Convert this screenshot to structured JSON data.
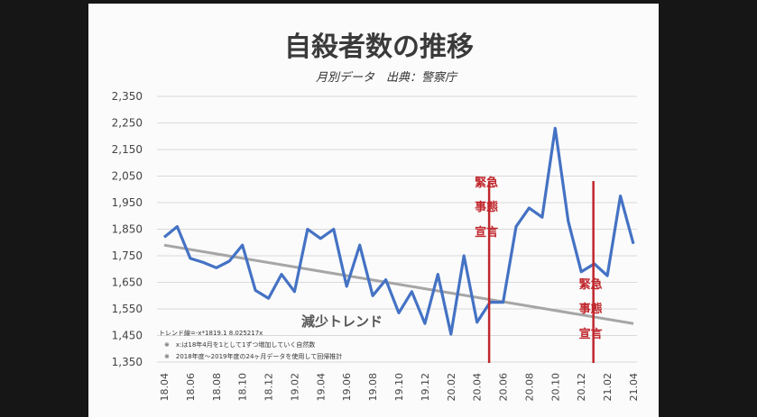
{
  "chart_data": {
    "type": "line",
    "title": "自殺者数の推移",
    "subtitle": "月別データ　出典：警察庁",
    "ylim": [
      1350,
      2350
    ],
    "yticks": [
      "2,350",
      "2,250",
      "2,150",
      "2,050",
      "1,950",
      "1,850",
      "1,750",
      "1,650",
      "1,550",
      "1,450",
      "1,350"
    ],
    "ytick_values": [
      2350,
      2250,
      2150,
      2050,
      1950,
      1850,
      1750,
      1650,
      1550,
      1450,
      1350
    ],
    "x": [
      "18.04",
      "18.05",
      "18.06",
      "18.07",
      "18.08",
      "18.09",
      "18.10",
      "18.11",
      "18.12",
      "19.01",
      "19.02",
      "19.03",
      "19.04",
      "19.05",
      "19.06",
      "19.07",
      "19.08",
      "19.09",
      "19.10",
      "19.11",
      "19.12",
      "20.01",
      "20.02",
      "20.03",
      "20.04",
      "20.05",
      "20.06",
      "20.07",
      "20.08",
      "20.09",
      "20.10",
      "20.11",
      "20.12",
      "21.01",
      "21.02",
      "21.03",
      "21.04"
    ],
    "xtick_labels": [
      "18.04",
      "18.06",
      "18.08",
      "18.10",
      "18.12",
      "19.02",
      "19.04",
      "19.06",
      "19.08",
      "19.10",
      "19.12",
      "20.02",
      "20.04",
      "20.06",
      "20.08",
      "20.10",
      "20.12",
      "21.02",
      "21.04"
    ],
    "series": [
      {
        "values": [
          1820,
          1860,
          1740,
          1725,
          1705,
          1730,
          1790,
          1620,
          1590,
          1680,
          1615,
          1850,
          1815,
          1850,
          1635,
          1790,
          1600,
          1660,
          1535,
          1615,
          1495,
          1680,
          1455,
          1750,
          1500,
          1575,
          1575,
          1860,
          1930,
          1895,
          2230,
          1880,
          1690,
          1720,
          1675,
          1975,
          1795
        ],
        "color": "#4472c4"
      }
    ],
    "trend": {
      "label": "減少トレンド",
      "start": 1790,
      "end": 1495,
      "color": "#a6a6a6"
    },
    "events": [
      {
        "x_index": 25,
        "label": [
          "緊急",
          "事態",
          "宣言"
        ],
        "color": "#c0272d"
      },
      {
        "x_index": 33,
        "label": [
          "緊急",
          "事態",
          "宣言"
        ],
        "color": "#c0272d"
      }
    ],
    "notes": [
      "トレンド線=-x*1819.1 8.025217x",
      "※　x:は18年4月を1として1ずつ増加していく自然数",
      "※　2018年度〜2019年度の24ヶ月データを使用して回帰推計"
    ],
    "grid": true
  }
}
